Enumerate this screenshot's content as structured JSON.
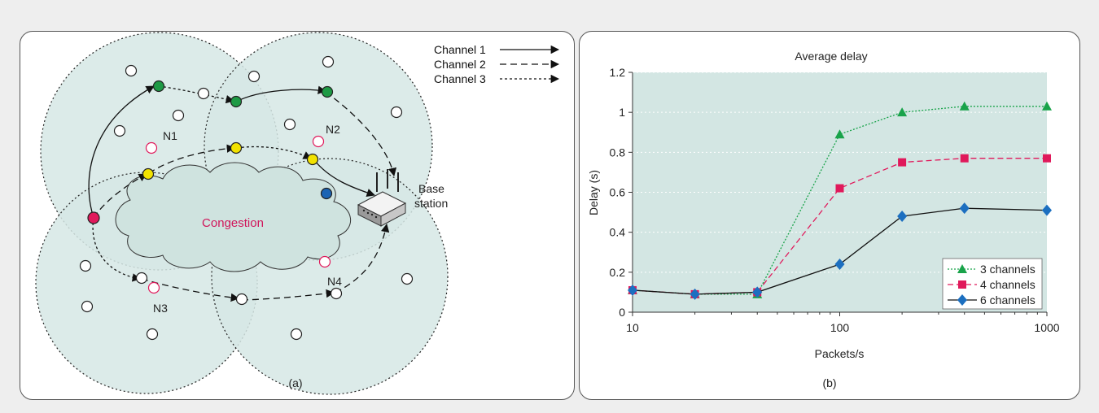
{
  "panel_a": {
    "caption": "(a)",
    "legend": [
      "Channel 1",
      "Channel 2",
      "Channel 3"
    ],
    "node_labels": {
      "n1": "N1",
      "n2": "N2",
      "n3": "N3",
      "n4": "N4"
    },
    "congestion_label": "Congestion",
    "base_station_label_line1": "Base",
    "base_station_label_line2": "station"
  },
  "panel_b": {
    "caption": "(b)"
  },
  "colors": {
    "zone_fill": "#d6e8e5",
    "congestion_fill": "#cfe3df",
    "congestion_text": "#d0155a",
    "node_green": "#1e9a45",
    "node_yellow": "#f2e200",
    "node_source": "#e0195b",
    "node_blue": "#1c64b4",
    "series_3": "#19a34a",
    "series_4": "#e0195b",
    "series_6": "#1c6fc0"
  },
  "chart_data": {
    "type": "line",
    "title": "Average delay",
    "xlabel": "Packets/s",
    "ylabel": "Delay (s)",
    "xscale": "log",
    "xlim": [
      10,
      1000
    ],
    "ylim": [
      0,
      1.2
    ],
    "xticks": [
      "10",
      "100",
      "1000"
    ],
    "yticks": [
      "0",
      "0.2",
      "0.4",
      "0.6",
      "0.8",
      "1",
      "1.2"
    ],
    "grid": "horizontal dotted",
    "legend_position": "bottom-right",
    "series": [
      {
        "name": "3 channels",
        "marker": "triangle",
        "line": "dotted",
        "x": [
          10,
          20,
          40,
          100,
          200,
          400,
          1000
        ],
        "y": [
          0.11,
          0.09,
          0.09,
          0.89,
          1.0,
          1.03,
          1.03
        ]
      },
      {
        "name": "4 channels",
        "marker": "square",
        "line": "dashed",
        "x": [
          10,
          20,
          40,
          100,
          200,
          400,
          1000
        ],
        "y": [
          0.11,
          0.09,
          0.1,
          0.62,
          0.75,
          0.77,
          0.77
        ]
      },
      {
        "name": "6 channels",
        "marker": "diamond",
        "line": "solid",
        "x": [
          10,
          20,
          40,
          100,
          200,
          400,
          1000
        ],
        "y": [
          0.11,
          0.09,
          0.1,
          0.24,
          0.48,
          0.52,
          0.51
        ]
      }
    ]
  }
}
